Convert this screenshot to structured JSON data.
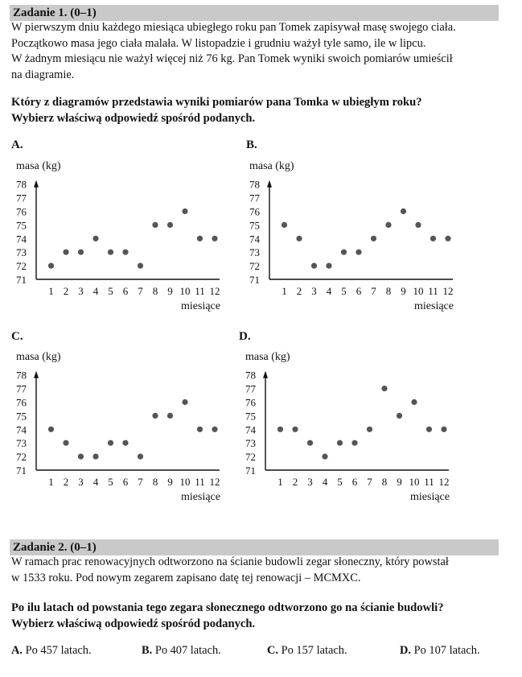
{
  "task1": {
    "header": "Zadanie 1. (0–1)",
    "lines": [
      "W pierwszym dniu każdego miesiąca ubiegłego roku pan Tomek zapisywał masę swojego ciała.",
      "Początkowo masa jego ciała malała. W listopadzie i grudniu ważył tyle samo, ile w lipcu.",
      "W żadnym miesiącu nie ważył więcej niż 76 kg. Pan Tomek wyniki swoich pomiarów umieścił",
      "na diagramie."
    ],
    "question_lines": [
      "Który z diagramów przedstawia wyniki pomiarów pana Tomka w ubiegłym roku?",
      "Wybierz właściwą odpowiedź spośród podanych."
    ]
  },
  "chart_data": [
    {
      "option": "A.",
      "type": "scatter",
      "ylabel": "masa (kg)",
      "xlabel": "miesiące",
      "x": [
        1,
        2,
        3,
        4,
        5,
        6,
        7,
        8,
        9,
        10,
        11,
        12
      ],
      "y": [
        72,
        73,
        73,
        74,
        73,
        73,
        72,
        75,
        75,
        76,
        74,
        74
      ],
      "xticks": [
        "1",
        "2",
        "3",
        "4",
        "5",
        "6",
        "7",
        "8",
        "9",
        "10",
        "11",
        "12"
      ],
      "yticks": [
        "71",
        "72",
        "73",
        "74",
        "75",
        "76",
        "77",
        "78"
      ],
      "ylim": [
        71,
        78
      ],
      "grid": false
    },
    {
      "option": "B.",
      "type": "scatter",
      "ylabel": "masa (kg)",
      "xlabel": "miesiące",
      "x": [
        1,
        2,
        3,
        4,
        5,
        6,
        7,
        8,
        9,
        10,
        11,
        12
      ],
      "y": [
        75,
        74,
        72,
        72,
        73,
        73,
        74,
        75,
        76,
        75,
        74,
        74
      ],
      "xticks": [
        "1",
        "2",
        "3",
        "4",
        "5",
        "6",
        "7",
        "8",
        "9",
        "10",
        "11",
        "12"
      ],
      "yticks": [
        "71",
        "72",
        "73",
        "74",
        "75",
        "76",
        "77",
        "78"
      ],
      "ylim": [
        71,
        78
      ],
      "grid": false
    },
    {
      "option": "C.",
      "type": "scatter",
      "ylabel": "masa (kg)",
      "xlabel": "miesiące",
      "x": [
        1,
        2,
        3,
        4,
        5,
        6,
        7,
        8,
        9,
        10,
        11,
        12
      ],
      "y": [
        74,
        73,
        72,
        72,
        73,
        73,
        72,
        75,
        75,
        76,
        74,
        74
      ],
      "xticks": [
        "1",
        "2",
        "3",
        "4",
        "5",
        "6",
        "7",
        "8",
        "9",
        "10",
        "11",
        "12"
      ],
      "yticks": [
        "71",
        "72",
        "73",
        "74",
        "75",
        "76",
        "77",
        "78"
      ],
      "ylim": [
        71,
        78
      ],
      "grid": false
    },
    {
      "option": "D.",
      "type": "scatter",
      "ylabel": "masa (kg)",
      "xlabel": "miesiące",
      "x": [
        1,
        2,
        3,
        4,
        5,
        6,
        7,
        8,
        9,
        10,
        11,
        12
      ],
      "y": [
        74,
        74,
        73,
        72,
        73,
        73,
        74,
        77,
        75,
        76,
        74,
        74
      ],
      "xticks": [
        "1",
        "2",
        "3",
        "4",
        "5",
        "6",
        "7",
        "8",
        "9",
        "10",
        "11",
        "12"
      ],
      "yticks": [
        "71",
        "72",
        "73",
        "74",
        "75",
        "76",
        "77",
        "78"
      ],
      "ylim": [
        71,
        78
      ],
      "grid": false
    }
  ],
  "task2": {
    "header": "Zadanie 2. (0–1)",
    "lines": [
      "W ramach prac renowacyjnych odtworzono na ścianie budowli zegar słoneczny, który powstał",
      "w 1533 roku. Pod nowym zegarem zapisano datę tej renowacji – MCMXC."
    ],
    "question_lines": [
      "Po ilu latach od powstania tego zegara słonecznego odtworzono go na ścianie budowli?",
      "Wybierz właściwą odpowiedź spośród podanych."
    ],
    "answers": [
      {
        "letter": "A.",
        "text": "Po 457 latach."
      },
      {
        "letter": "B.",
        "text": "Po 407 latach."
      },
      {
        "letter": "C.",
        "text": "Po 157 latach."
      },
      {
        "letter": "D.",
        "text": "Po 107 latach."
      }
    ]
  },
  "colors": {
    "header_bg": "#c9c9c9",
    "point": "#555555",
    "axis": "#111111"
  }
}
